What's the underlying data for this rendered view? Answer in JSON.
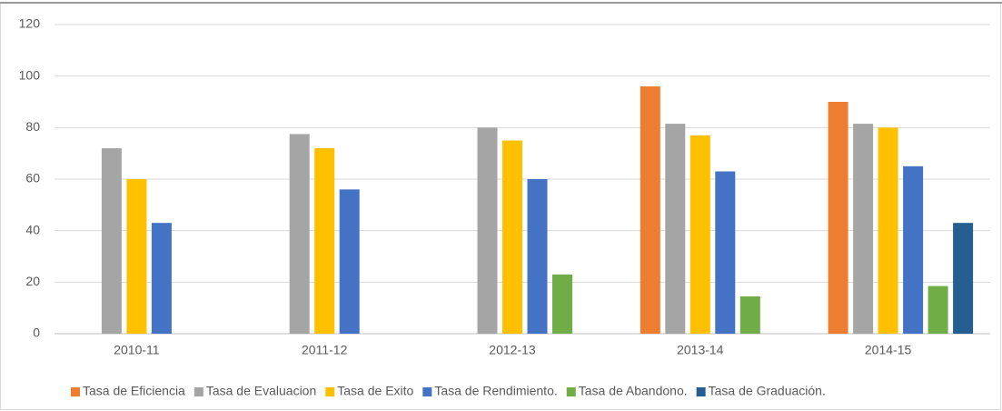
{
  "chart_data": {
    "type": "bar",
    "categories": [
      "2010-11",
      "2011-12",
      "2012-13",
      "2013-14",
      "2014-15"
    ],
    "series": [
      {
        "name": "Tasa de Eficiencia",
        "color": "#ed7d31",
        "values": [
          null,
          null,
          null,
          96,
          90
        ]
      },
      {
        "name": "Tasa de Evaluacion",
        "color": "#a5a5a5",
        "values": [
          72,
          77.5,
          80,
          81.5,
          81.5
        ]
      },
      {
        "name": "Tasa de Exito",
        "color": "#ffc000",
        "values": [
          60,
          72,
          75,
          77,
          80
        ]
      },
      {
        "name": "Tasa de Rendimiento.",
        "color": "#4472c4",
        "values": [
          43,
          56,
          60,
          63,
          65
        ]
      },
      {
        "name": "Tasa de Abandono.",
        "color": "#70ad47",
        "values": [
          null,
          null,
          23,
          14.5,
          18.5
        ]
      },
      {
        "name": "Tasa de Graduación.",
        "color": "#255e91",
        "values": [
          null,
          null,
          null,
          null,
          43
        ]
      }
    ],
    "ylim": [
      0,
      120
    ],
    "yticks": [
      0,
      20,
      40,
      60,
      80,
      100,
      120
    ],
    "grid": true,
    "legend": "bottom"
  }
}
